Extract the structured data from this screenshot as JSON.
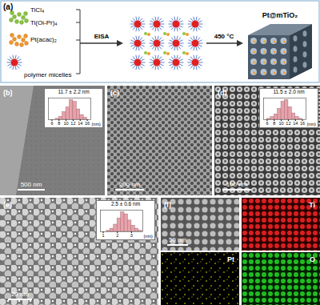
{
  "schematic": {
    "label": "(a)",
    "reagents": [
      "TiCl₄",
      "Ti(Oi-Pr)₄",
      "Pt(acac)₂",
      "polymer micelles"
    ],
    "step1": "EISA",
    "step2": "450 °C",
    "product": "Pt@mTiO₂"
  },
  "images": [
    {
      "label": "(b)",
      "scale_bar": "500 nm"
    },
    {
      "label": "(c)",
      "scale_bar": "200 nm"
    },
    {
      "label": "(d)",
      "scale_bar": "100 nm"
    },
    {
      "label": "(e)",
      "scale_bar": "20 nm"
    },
    {
      "label": "(f)",
      "scale_bar": "50 nm",
      "maps": [
        "Ti",
        "Pt",
        "O"
      ]
    }
  ],
  "chart_data": [
    {
      "type": "histogram",
      "title": "11.7 ± 2.2 nm",
      "x_label": "(nm)",
      "bins": [
        7,
        8,
        9,
        10,
        11,
        12,
        13,
        14,
        15,
        16
      ],
      "values": [
        1,
        3,
        8,
        13,
        21,
        19,
        11,
        5,
        2
      ],
      "xlim": [
        5,
        17
      ],
      "xticks": [
        6,
        8,
        10,
        12,
        14,
        16
      ],
      "ylim": [
        0,
        23
      ],
      "tick_labels": "x",
      "color": "#e8a1aa"
    },
    {
      "type": "histogram",
      "title": "11.5 ± 2.0 nm",
      "x_label": "(nm)",
      "bins": [
        6,
        7,
        8,
        9,
        10,
        11,
        12,
        13,
        14,
        15,
        16
      ],
      "values": [
        1,
        3,
        6,
        12,
        20,
        22,
        14,
        7,
        3,
        1
      ],
      "xlim": [
        5,
        17
      ],
      "xticks": [
        6,
        8,
        10,
        12,
        14,
        16
      ],
      "ylim": [
        0,
        24
      ],
      "tick_labels": "x",
      "color": "#e8a1aa"
    },
    {
      "type": "histogram",
      "title": "2.5 ± 0.6 nm",
      "x_label": "(nm)",
      "bins": [
        1.25,
        1.5,
        1.75,
        2.0,
        2.25,
        2.5,
        2.75,
        3.0,
        3.25,
        3.5,
        3.75
      ],
      "values": [
        1,
        3,
        7,
        13,
        19,
        17,
        11,
        6,
        3,
        1
      ],
      "xlim": [
        0.8,
        3.8
      ],
      "xticks": [
        1,
        2,
        3
      ],
      "ylim": [
        0,
        21
      ],
      "tick_labels": "x",
      "color": "#e8a1aa"
    }
  ]
}
